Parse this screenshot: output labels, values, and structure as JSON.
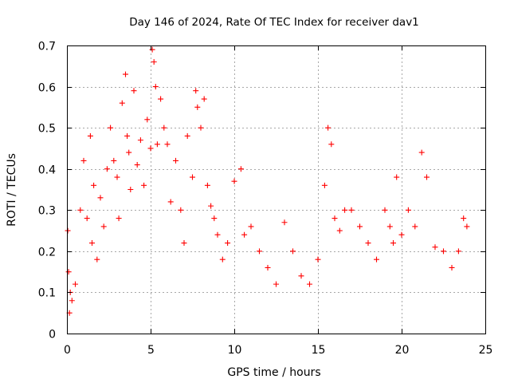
{
  "chart_data": {
    "type": "scatter",
    "title": "Day 146 of 2024, Rate Of TEC Index for receiver dav1",
    "xlabel": "GPS time / hours",
    "ylabel": "ROTI / TECUs",
    "xlim": [
      0,
      25
    ],
    "ylim": [
      0,
      0.7
    ],
    "xticks": [
      0,
      5,
      10,
      15,
      20,
      25
    ],
    "yticks": [
      0,
      0.1,
      0.2,
      0.3,
      0.4,
      0.5,
      0.6,
      0.7
    ],
    "xtick_labels": [
      "0",
      "5",
      "10",
      "15",
      "20",
      "25"
    ],
    "ytick_labels": [
      "0",
      "0.1",
      "0.2",
      "0.3",
      "0.4",
      "0.5",
      "0.6",
      "0.7"
    ],
    "grid": true,
    "legend": "none",
    "marker": "plus",
    "color": "#ff0000",
    "series": [
      {
        "x": [
          0.05,
          0.1,
          0.15,
          0.2,
          0.3,
          0.5,
          0.8,
          1.0,
          1.2,
          1.4,
          1.5,
          1.6,
          1.8,
          2.0,
          2.2,
          2.4,
          2.6,
          2.8,
          3.0,
          3.1,
          3.3,
          3.5,
          3.6,
          3.7,
          3.8,
          4.0,
          4.2,
          4.4,
          4.6,
          4.8,
          5.0,
          5.1,
          5.2,
          5.3,
          5.4,
          5.6,
          5.8,
          6.0,
          6.2,
          6.5,
          6.8,
          7.0,
          7.2,
          7.5,
          7.7,
          7.8,
          8.0,
          8.2,
          8.4,
          8.6,
          8.8,
          9.0,
          9.3,
          9.6,
          10.0,
          10.4,
          10.6,
          11.0,
          11.5,
          12.0,
          12.5,
          13.0,
          13.5,
          14.0,
          14.5,
          15.0,
          15.4,
          15.6,
          15.8,
          16.0,
          16.3,
          16.6,
          17.0,
          17.5,
          18.0,
          18.5,
          19.0,
          19.3,
          19.5,
          19.7,
          20.0,
          20.4,
          20.8,
          21.2,
          21.5,
          22.0,
          22.5,
          23.0,
          23.4,
          23.7,
          23.9
        ],
        "y": [
          0.25,
          0.15,
          0.05,
          0.1,
          0.08,
          0.12,
          0.3,
          0.42,
          0.28,
          0.48,
          0.22,
          0.36,
          0.18,
          0.33,
          0.26,
          0.4,
          0.5,
          0.42,
          0.38,
          0.28,
          0.56,
          0.63,
          0.48,
          0.44,
          0.35,
          0.59,
          0.41,
          0.47,
          0.36,
          0.52,
          0.45,
          0.69,
          0.66,
          0.6,
          0.46,
          0.57,
          0.5,
          0.46,
          0.32,
          0.42,
          0.3,
          0.22,
          0.48,
          0.38,
          0.59,
          0.55,
          0.5,
          0.57,
          0.36,
          0.31,
          0.28,
          0.24,
          0.18,
          0.22,
          0.37,
          0.4,
          0.24,
          0.26,
          0.2,
          0.16,
          0.12,
          0.27,
          0.2,
          0.14,
          0.12,
          0.18,
          0.36,
          0.5,
          0.46,
          0.28,
          0.25,
          0.3,
          0.3,
          0.26,
          0.22,
          0.18,
          0.3,
          0.26,
          0.22,
          0.38,
          0.24,
          0.3,
          0.26,
          0.44,
          0.38,
          0.21,
          0.2,
          0.16,
          0.2,
          0.28,
          0.26
        ]
      }
    ]
  }
}
